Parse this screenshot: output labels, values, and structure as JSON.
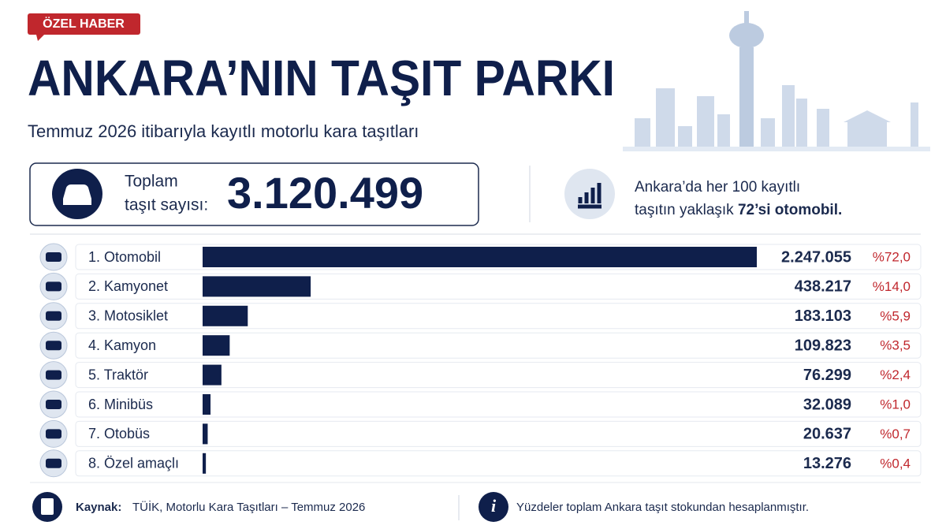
{
  "badge": "ÖZEL HABER",
  "title": "ANKARA’NIN TAŞIT PARKI",
  "subtitle": "Temmuz 2026 itibarıyla kayıtlı motorlu kara taşıtları",
  "total": {
    "label": [
      "Toplam",
      "taşıt sayısı:"
    ],
    "value": "3.120.499"
  },
  "note": {
    "line1": "Ankara’da her 100 kayıtlı",
    "line2": "taşıtın yaklaşık ",
    "highlight": "72’si otomobil."
  },
  "chart_data": {
    "type": "bar",
    "orientation": "horizontal",
    "color": "#0f1f4b",
    "categories": [
      "1. Otomobil",
      "2. Kamyonet",
      "3. Motosiklet",
      "4. Kamyon",
      "5. Traktör",
      "6. Minibüs",
      "7. Otobüs",
      "8. Özel amaçlı"
    ],
    "values": [
      2247055,
      438217,
      183103,
      109823,
      76299,
      32089,
      20637,
      13276
    ],
    "value_labels": [
      "2.247.055",
      "438.217",
      "183.103",
      "109.823",
      "76.299",
      "32.089",
      "20.637",
      "13.276"
    ],
    "shares": {
      "color": "#c0272d",
      "values": [
        72.0,
        14.0,
        5.9,
        3.5,
        2.4,
        1.0,
        0.7,
        0.4
      ],
      "value_labels": [
        "%72,0",
        "%14,0",
        "%5,9",
        "%3,5",
        "%2,4",
        "%1,0",
        "%0,7",
        "%0,4"
      ]
    }
  },
  "footer": {
    "source_label": "Kaynak:",
    "source": "TÜİK, Motorlu Kara Taşıtları – Temmuz 2026",
    "info": "Yüzdeler toplam Ankara taşıt stokundan hesaplanmıştır."
  }
}
